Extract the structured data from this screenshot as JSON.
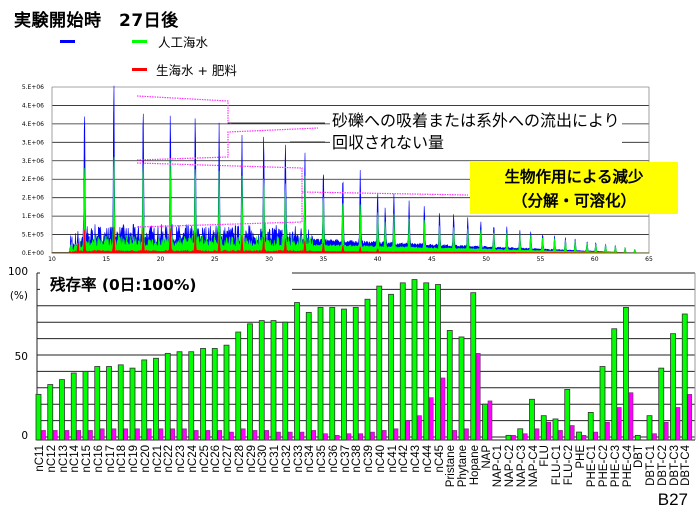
{
  "title": "実験開始時　27日後",
  "legend": [
    {
      "label": "",
      "color": "#0000ff"
    },
    {
      "label": "人工海水",
      "color": "#00ff00"
    },
    {
      "label": "生海水 + 肥料",
      "color": "#ff0000"
    }
  ],
  "annotations": {
    "loss_line1": "砂礫への吸着または系外への流出により",
    "loss_line2": "回収されない量",
    "bio_line1": "生物作用による減少",
    "bio_line2": "（分解・可溶化）",
    "bracket_color": "#ff33ff"
  },
  "slide_id": "B27",
  "chart_data": [
    {
      "type": "line",
      "title": "",
      "xlabel": "",
      "ylabel": "",
      "xlim": [
        10,
        65
      ],
      "ylim": [
        0,
        5000000
      ],
      "x_ticks": [
        "10",
        "15",
        "20",
        "25",
        "30",
        "35",
        "40",
        "45",
        "50",
        "55",
        "60",
        "65"
      ],
      "y_ticks": [
        "0.E+00",
        "5.E+05",
        "1.E+06",
        "2.E+06",
        "2.E+06",
        "3.E+06",
        "3.E+06",
        "4.E+06",
        "4.E+06",
        "5.E+06"
      ],
      "grid": true,
      "peak_units": "E+06",
      "series": [
        {
          "name": "blue",
          "color": "#0000ff",
          "peaks_x": [
            13.0,
            15.7,
            18.4,
            20.9,
            23.2,
            25.4,
            27.5,
            29.5,
            31.5,
            33.3,
            35.0,
            36.8,
            38.4,
            40.0,
            40.7,
            41.5,
            42.9,
            44.3,
            45.7,
            47.0,
            48.3,
            49.5,
            50.7,
            51.9,
            53.1,
            54.1,
            55.2,
            56.3,
            57.3,
            58.2,
            59.3,
            60.1,
            61.0,
            61.9,
            62.8,
            63.7
          ],
          "peaks_y": [
            3.8,
            4.75,
            4.05,
            3.88,
            3.6,
            3.5,
            3.2,
            2.9,
            2.8,
            2.65,
            2.2,
            2.04,
            2.17,
            1.59,
            1.1,
            1.52,
            1.29,
            1.21,
            1.05,
            0.98,
            0.88,
            0.81,
            0.7,
            0.66,
            0.58,
            0.52,
            0.48,
            0.41,
            0.38,
            0.35,
            0.31,
            0.28,
            0.23,
            0.2,
            0.15,
            0.1
          ]
        },
        {
          "name": "人工海水",
          "color": "#00ff00",
          "peaks_x": [
            13.0,
            15.7,
            18.4,
            20.9,
            23.2,
            25.4,
            27.5,
            29.5,
            31.5,
            33.3,
            35.0,
            36.8,
            38.4,
            40.0,
            40.7,
            41.5,
            42.9,
            44.3,
            45.7,
            47.0,
            48.3,
            49.5,
            50.7,
            51.9,
            53.1,
            54.1,
            55.2,
            56.3,
            57.3,
            58.2,
            59.3,
            60.1,
            61.0,
            61.9,
            62.8,
            63.7
          ],
          "peaks_y": [
            2.27,
            2.64,
            2.62,
            2.67,
            2.47,
            2.31,
            2.14,
            1.97,
            1.86,
            1.89,
            1.6,
            1.44,
            1.26,
            1.08,
            0.78,
            1.03,
            0.88,
            0.88,
            0.71,
            0.68,
            0.63,
            0.6,
            0.56,
            0.53,
            0.48,
            0.45,
            0.42,
            0.38,
            0.35,
            0.32,
            0.29,
            0.26,
            0.22,
            0.19,
            0.14,
            0.1
          ]
        },
        {
          "name": "生海水 + 肥料",
          "color": "#ff0000",
          "peaks_x": [
            12.4,
            13.0,
            15.7,
            18.4,
            20.9,
            23.2,
            25.4,
            27.5,
            29.5,
            31.5,
            33.3,
            35.0,
            36.8,
            38.4,
            40.0
          ],
          "peaks_y": [
            0.3,
            0.66,
            0.76,
            0.74,
            0.71,
            0.6,
            0.56,
            0.48,
            0.46,
            0.4,
            0.34,
            0.28,
            0.2,
            0.15,
            0.1
          ]
        }
      ]
    },
    {
      "type": "bar",
      "title": "残存率 (0日:100%)",
      "ylabel": "(%)",
      "ylim": [
        0,
        100
      ],
      "y_ticks": [
        "0",
        "50",
        "100"
      ],
      "grid": true,
      "categories": [
        "nC11",
        "nC12",
        "nC13",
        "nC14",
        "nC15",
        "nC16",
        "nC17",
        "nC18",
        "nC19",
        "nC20",
        "nC21",
        "nC22",
        "nC23",
        "nC24",
        "nC25",
        "nC26",
        "nC27",
        "nC28",
        "nC29",
        "nC30",
        "nC31",
        "nC32",
        "nC33",
        "nC34",
        "nC35",
        "nC36",
        "nC37",
        "nC38",
        "nC39",
        "nC40",
        "nC41",
        "nC42",
        "nC43",
        "nC44",
        "nC45",
        "Pristane",
        "Phytane",
        "Hopane",
        "NAP",
        "NAP-C1",
        "NAP-C2",
        "NAP-C3",
        "NAP-C4",
        "FLU",
        "FLU-C1",
        "FLU-C2",
        "PHE",
        "PHE-C1",
        "PHE-C2",
        "PHE-C3",
        "PHE-C4",
        "DBT",
        "DBT-C1",
        "DBT-C2",
        "DBT-C3",
        "DBT-C4"
      ],
      "series": [
        {
          "name": "人工海水",
          "color": "#00ff00",
          "values": [
            26,
            32,
            35,
            39,
            40,
            43,
            43,
            44,
            42,
            47,
            48,
            51,
            52,
            52,
            54,
            54,
            56,
            64,
            69,
            71,
            71,
            70,
            82,
            76,
            79,
            79,
            78,
            79,
            84,
            92,
            87,
            94,
            96,
            94,
            93,
            65,
            61,
            88,
            20,
            0,
            1,
            5,
            23,
            13,
            11,
            29,
            3,
            15,
            43,
            66,
            79,
            1,
            13,
            42,
            63,
            75
          ]
        },
        {
          "name": "生海水 + 肥料",
          "color": "#ff00ff",
          "values": [
            4,
            4,
            4,
            4,
            4,
            5,
            5,
            5,
            5,
            5,
            5,
            5,
            5,
            4,
            4,
            4,
            3,
            5,
            4,
            4,
            3,
            3,
            3,
            4,
            2,
            1,
            2,
            2,
            3,
            4,
            5,
            10,
            13,
            24,
            36,
            4,
            5,
            51,
            22,
            0,
            1,
            2,
            5,
            9,
            4,
            7,
            1,
            3,
            9,
            18,
            27,
            0,
            2,
            9,
            18,
            26
          ]
        }
      ]
    }
  ]
}
